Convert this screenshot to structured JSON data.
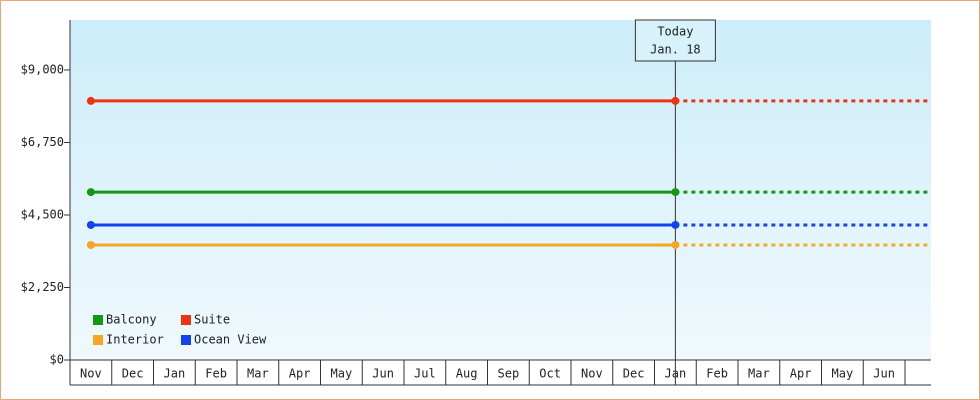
{
  "chart_data": {
    "type": "line",
    "categories": [
      "Nov",
      "Dec",
      "Jan",
      "Feb",
      "Mar",
      "Apr",
      "May",
      "Jun",
      "Jul",
      "Aug",
      "Sep",
      "Oct",
      "Nov",
      "Dec",
      "Jan",
      "Feb",
      "Mar",
      "Apr",
      "May",
      "Jun"
    ],
    "series": [
      {
        "name": "Balcony",
        "color": "#119911",
        "values": [
          5210,
          5210,
          5210,
          5210,
          5210,
          5210,
          5210,
          5210,
          5210,
          5210,
          5210,
          5210,
          5210,
          5210,
          5210,
          5210,
          5210,
          5210,
          5210,
          5210
        ]
      },
      {
        "name": "Suite",
        "color": "#ee3311",
        "values": [
          8040,
          8040,
          8040,
          8040,
          8040,
          8040,
          8040,
          8040,
          8040,
          8040,
          8040,
          8040,
          8040,
          8040,
          8040,
          8040,
          8040,
          8040,
          8040,
          8040
        ]
      },
      {
        "name": "Interior",
        "color": "#f5a623",
        "values": [
          3570,
          3570,
          3570,
          3570,
          3570,
          3570,
          3570,
          3570,
          3570,
          3570,
          3570,
          3570,
          3570,
          3570,
          3570,
          3570,
          3570,
          3570,
          3570,
          3570
        ]
      },
      {
        "name": "Ocean View",
        "color": "#1144ee",
        "values": [
          4190,
          4190,
          4190,
          4190,
          4190,
          4190,
          4190,
          4190,
          4190,
          4190,
          4190,
          4190,
          4190,
          4190,
          4190,
          4190,
          4190,
          4190,
          4190,
          4190
        ]
      }
    ],
    "ylim": [
      0,
      10550
    ],
    "yticks": [
      {
        "value": 0,
        "label": "$0"
      },
      {
        "value": 2250,
        "label": "$2,250"
      },
      {
        "value": 4500,
        "label": "$4,500"
      },
      {
        "value": 6750,
        "label": "$6,750"
      },
      {
        "value": 9000,
        "label": "$9,000"
      }
    ],
    "today": {
      "index": 14,
      "label": "Today",
      "date": "Jan. 18"
    }
  }
}
